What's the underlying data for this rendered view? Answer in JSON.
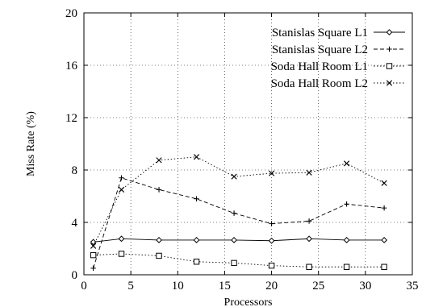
{
  "chart_data": {
    "type": "line",
    "title": "",
    "xlabel": "Processors",
    "ylabel": "Miss Rate (%)",
    "xlim": [
      0,
      35
    ],
    "ylim": [
      0,
      20
    ],
    "xticks": [
      0,
      5,
      10,
      15,
      20,
      25,
      30,
      35
    ],
    "yticks": [
      0,
      4,
      8,
      12,
      16,
      20
    ],
    "grid": true,
    "legend_position": "top-right",
    "x": [
      1,
      4,
      8,
      12,
      16,
      20,
      24,
      28,
      32
    ],
    "series": [
      {
        "name": "Stanislas Square L1",
        "marker": "diamond",
        "dash": "solid",
        "values": [
          2.5,
          2.75,
          2.65,
          2.65,
          2.65,
          2.6,
          2.75,
          2.65,
          2.65
        ]
      },
      {
        "name": "Stanislas Square L2",
        "marker": "plus",
        "dash": "dashed",
        "values": [
          0.5,
          7.4,
          6.5,
          5.8,
          4.7,
          3.9,
          4.1,
          5.4,
          5.1
        ]
      },
      {
        "name": "Soda Hall Room L1",
        "marker": "square",
        "dash": "dotted",
        "values": [
          1.5,
          1.6,
          1.45,
          1.0,
          0.9,
          0.7,
          0.6,
          0.6,
          0.6
        ]
      },
      {
        "name": "Soda Hall Room L2",
        "marker": "cross",
        "dash": "dotted",
        "values": [
          2.2,
          6.5,
          8.75,
          9.0,
          7.5,
          7.75,
          7.8,
          8.5,
          7.0
        ]
      }
    ]
  }
}
